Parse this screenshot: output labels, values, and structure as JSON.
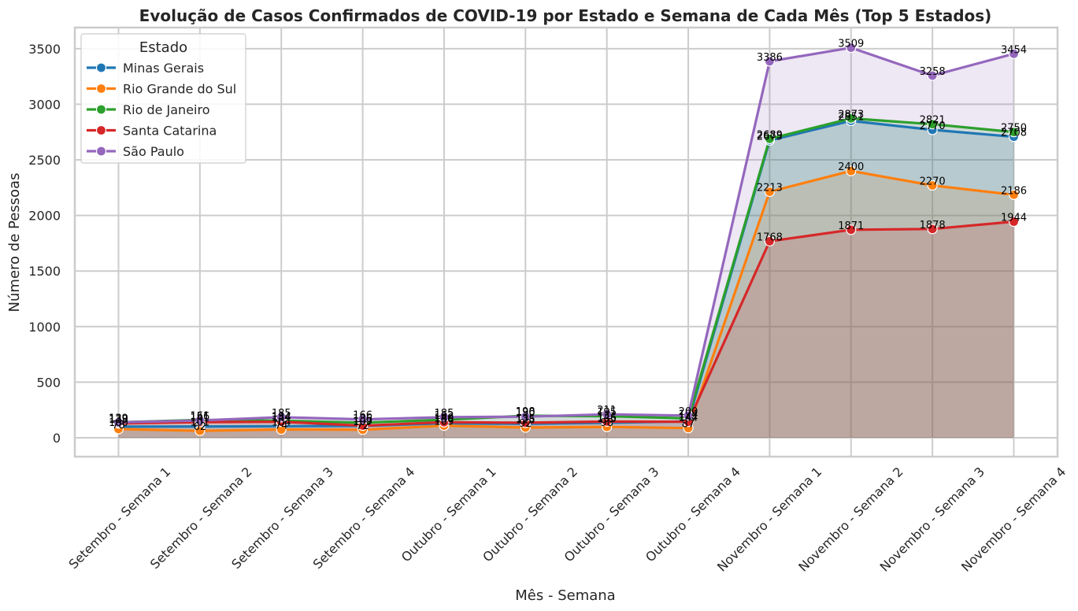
{
  "chart_data": {
    "type": "line",
    "title": "Evolução de Casos Confirmados de COVID-19 por Estado e Semana de Cada Mês (Top 5 Estados)",
    "xlabel": "Mês - Semana",
    "ylabel": "Número de Pessoas",
    "ylim": [
      -170,
      3690
    ],
    "yticks": [
      0,
      500,
      1000,
      1500,
      2000,
      2500,
      3000,
      3500
    ],
    "grid": true,
    "legend": {
      "title": "Estado",
      "placement": "top-left"
    },
    "categories": [
      "Setembro - Semana 1",
      "Setembro - Semana 2",
      "Setembro - Semana 3",
      "Setembro - Semana 4",
      "Outubro - Semana 1",
      "Outubro - Semana 2",
      "Outubro - Semana 3",
      "Outubro - Semana 4",
      "Novembro - Semana 1",
      "Novembro - Semana 2",
      "Novembro - Semana 3",
      "Novembro - Semana 4"
    ],
    "series": [
      {
        "name": "Minas Gerais",
        "color": "#1f77b4",
        "values": [
          100,
          101,
          104,
          107,
          130,
          125,
          135,
          147,
          2675,
          2851,
          2770,
          2708
        ]
      },
      {
        "name": "Rio Grande do Sul",
        "color": "#ff7f0e",
        "values": [
          78,
          62,
          74,
          72,
          109,
          92,
          98,
          87,
          2213,
          2400,
          2270,
          2186
        ]
      },
      {
        "name": "Rio de Janeiro",
        "color": "#2ca02c",
        "values": [
          139,
          161,
          154,
          136,
          162,
          198,
          195,
          174,
          2689,
          2873,
          2821,
          2750
        ]
      },
      {
        "name": "Santa Catarina",
        "color": "#d62728",
        "values": [
          129,
          141,
          144,
          109,
          140,
          135,
          146,
          144,
          1768,
          1871,
          1878,
          1944
        ]
      },
      {
        "name": "São Paulo",
        "color": "#9467bd",
        "values": [
          139,
          156,
          185,
          166,
          185,
          190,
          211,
          200,
          3386,
          3509,
          3258,
          3454
        ]
      }
    ]
  }
}
